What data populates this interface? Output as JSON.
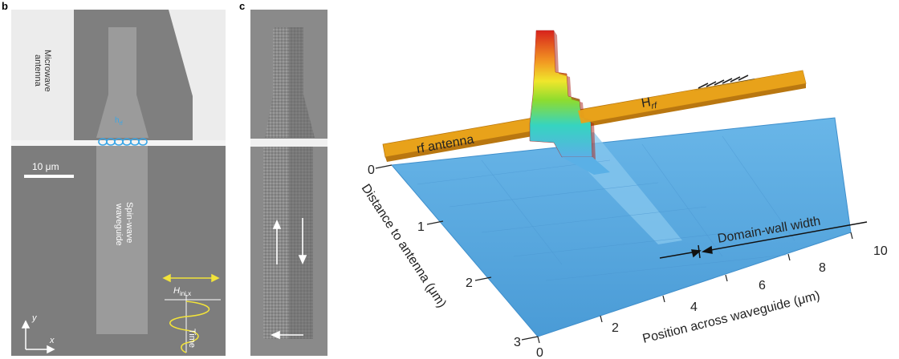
{
  "panel_b": {
    "label": "b",
    "antenna_text_1": "Microwave",
    "antenna_text_2": "antenna",
    "h_rf": "h",
    "h_rf_sub": "rf",
    "scale_bar": "10 μm",
    "waveguide_text_1": "Spin-wave",
    "waveguide_text_2": "waveguide",
    "h_ini": "H",
    "h_ini_sub": "ini,x",
    "time_label": "Time",
    "axis_y": "y",
    "axis_x": "x"
  },
  "panel_c": {
    "label": "c"
  },
  "panel_3d": {
    "rf_antenna": "rf antenna",
    "h_rf": "H",
    "h_rf_sub": "rf",
    "domain_wall": "Domain-wall width",
    "y_axis_title": "Distance to antenna (μm)",
    "x_axis_title": "Position across waveguide (μm)",
    "y_ticks": [
      "0",
      "1",
      "2",
      "3"
    ],
    "x_ticks": [
      "0",
      "2",
      "4",
      "6",
      "8",
      "10"
    ]
  },
  "colors": {
    "sem_gray": "#7d7d7d",
    "antenna_white": "#ececec",
    "surface_blue": "#5aa9e0",
    "antenna_orange": "#e8a21a",
    "arrow_yellow": "#f2e33a",
    "hrf_blue": "#3aa6e6"
  }
}
